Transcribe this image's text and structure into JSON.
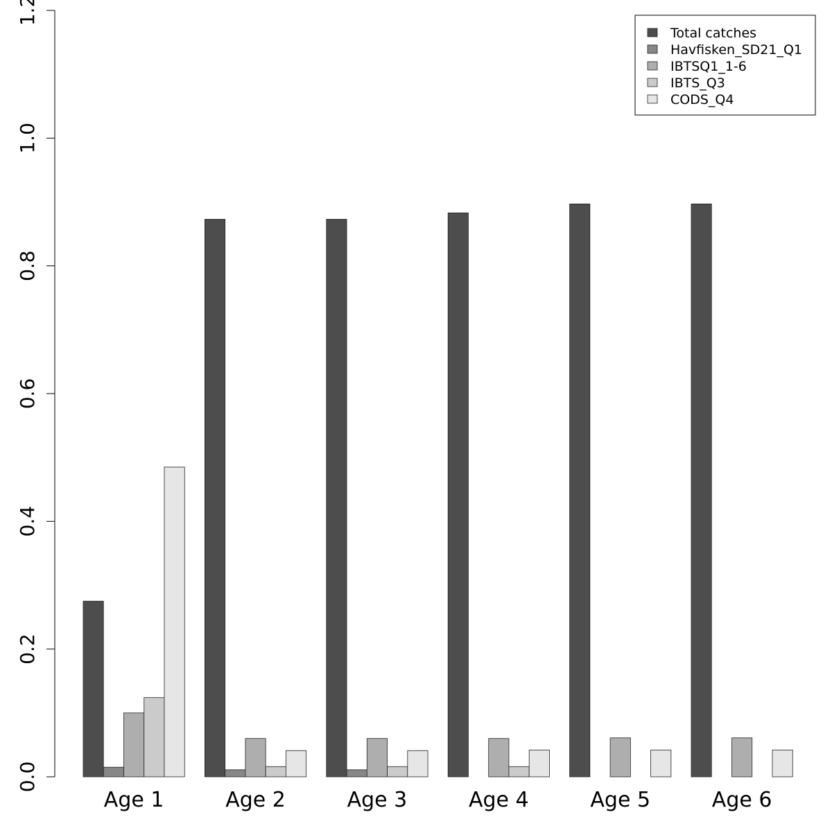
{
  "chart_data": {
    "type": "bar",
    "title": "",
    "xlabel": "",
    "ylabel": "",
    "ylim": [
      0,
      1.2
    ],
    "yticks": [
      "0.0",
      "0.2",
      "0.4",
      "0.6",
      "0.8",
      "1.0",
      "1.2"
    ],
    "grid": false,
    "legend_position": "top-right",
    "categories": [
      "Age 1",
      "Age 2",
      "Age 3",
      "Age 4",
      "Age 5",
      "Age 6"
    ],
    "series": [
      {
        "name": "Total catches",
        "color": "#4d4d4d",
        "values": [
          0.275,
          0.873,
          0.873,
          0.883,
          0.897,
          0.897
        ]
      },
      {
        "name": "Havfisken_SD21_Q1",
        "color": "#878787",
        "values": [
          0.015,
          0.011,
          0.011,
          0,
          0,
          0
        ]
      },
      {
        "name": "IBTSQ1_1-6",
        "color": "#aeaeae",
        "values": [
          0.1,
          0.06,
          0.06,
          0.06,
          0.061,
          0.061
        ]
      },
      {
        "name": "IBTS_Q3",
        "color": "#cbcbcb",
        "values": [
          0.124,
          0.016,
          0.016,
          0.016,
          0,
          0
        ]
      },
      {
        "name": "CODS_Q4",
        "color": "#e6e6e6",
        "values": [
          0.485,
          0.041,
          0.041,
          0.042,
          0.042,
          0.042
        ]
      }
    ]
  }
}
